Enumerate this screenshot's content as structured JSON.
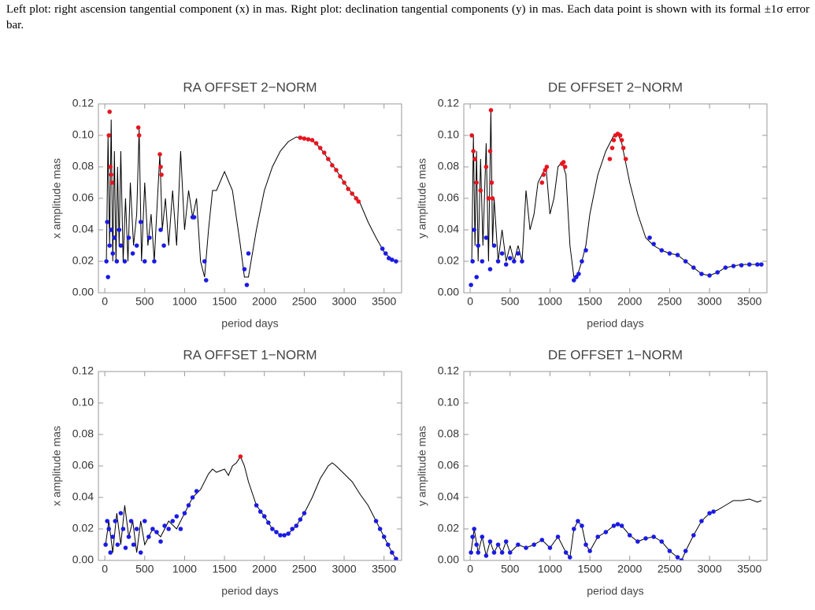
{
  "caption": "Left plot: right ascension tangential component (x) in mas. Right plot: declination tangential components (y) in mas. Each data point is shown with its formal ±1σ error bar.",
  "chart_data": [
    {
      "type": "line",
      "title": "RA OFFSET 2−NORM",
      "x_label": "period days",
      "y_label": "x amplitude mas",
      "xlim": [
        -80,
        3720
      ],
      "ylim": [
        0,
        0.12
      ],
      "xticks": [
        0,
        500,
        1000,
        1500,
        2000,
        2500,
        3000,
        3500
      ],
      "yticks": [
        {
          "value": 0,
          "label": "0.00"
        },
        0.02,
        0.04,
        0.06,
        0.08,
        {
          "value": 0.1,
          "label": "0.10"
        },
        0.12
      ],
      "series": [
        {
          "mode": "line",
          "color": "#000000",
          "x": [
            20,
            40,
            60,
            80,
            100,
            120,
            140,
            160,
            180,
            200,
            230,
            260,
            290,
            320,
            360,
            400,
            430,
            460,
            500,
            540,
            580,
            620,
            660,
            690,
            720,
            760,
            800,
            850,
            900,
            950,
            1000,
            1050,
            1100,
            1150,
            1200,
            1250,
            1300,
            1350,
            1400,
            1500,
            1600,
            1700,
            1750,
            1800,
            1850,
            1900,
            2000,
            2100,
            2200,
            2300,
            2400,
            2500,
            2600,
            2700,
            2800,
            2900,
            3000,
            3100,
            3200,
            3300,
            3400,
            3500,
            3600,
            3650
          ],
          "values": [
            0.02,
            0.1,
            0.03,
            0.11,
            0.02,
            0.09,
            0.02,
            0.08,
            0.03,
            0.09,
            0.02,
            0.06,
            0.02,
            0.07,
            0.03,
            0.05,
            0.104,
            0.02,
            0.07,
            0.03,
            0.05,
            0.02,
            0.06,
            0.088,
            0.04,
            0.06,
            0.03,
            0.065,
            0.03,
            0.09,
            0.04,
            0.065,
            0.048,
            0.06,
            0.02,
            0.01,
            0.04,
            0.065,
            0.065,
            0.077,
            0.065,
            0.03,
            0.01,
            0.01,
            0.025,
            0.04,
            0.065,
            0.08,
            0.09,
            0.096,
            0.099,
            0.098,
            0.097,
            0.092,
            0.085,
            0.078,
            0.07,
            0.063,
            0.057,
            0.045,
            0.035,
            0.026,
            0.021,
            0.02
          ]
        },
        {
          "mode": "points",
          "color": "#e8141e",
          "x": [
            50,
            60,
            70,
            80,
            90,
            420,
            430,
            690,
            700,
            710,
            2450,
            2500,
            2550,
            2600,
            2650,
            2700,
            2750,
            2800,
            2850,
            2900,
            2950,
            3000,
            3050,
            3100,
            3150,
            3180
          ],
          "values": [
            0.1,
            0.115,
            0.08,
            0.075,
            0.07,
            0.105,
            0.1,
            0.088,
            0.08,
            0.075,
            0.0985,
            0.098,
            0.0975,
            0.097,
            0.095,
            0.092,
            0.089,
            0.085,
            0.081,
            0.078,
            0.074,
            0.07,
            0.066,
            0.063,
            0.06,
            0.058
          ]
        },
        {
          "mode": "points",
          "color": "#1a1ae6",
          "x": [
            20,
            30,
            40,
            60,
            80,
            100,
            120,
            150,
            180,
            200,
            250,
            300,
            350,
            400,
            450,
            500,
            560,
            620,
            700,
            740,
            1100,
            1120,
            1250,
            1270,
            1750,
            1780,
            1800,
            3480,
            3520,
            3560,
            3600,
            3650
          ],
          "values": [
            0.02,
            0.045,
            0.01,
            0.03,
            0.04,
            0.025,
            0.035,
            0.02,
            0.04,
            0.03,
            0.02,
            0.035,
            0.025,
            0.03,
            0.045,
            0.02,
            0.035,
            0.02,
            0.04,
            0.03,
            0.048,
            0.048,
            0.02,
            0.008,
            0.015,
            0.005,
            0.025,
            0.028,
            0.025,
            0.022,
            0.021,
            0.02
          ]
        }
      ]
    },
    {
      "type": "line",
      "title": "DE OFFSET 2−NORM",
      "x_label": "period days",
      "y_label": "y amplitude mas",
      "xlim": [
        -80,
        3720
      ],
      "ylim": [
        0,
        0.12
      ],
      "xticks": [
        0,
        500,
        1000,
        1500,
        2000,
        2500,
        3000,
        3500
      ],
      "yticks": [
        {
          "value": 0,
          "label": "0.00"
        },
        0.02,
        0.04,
        0.06,
        0.08,
        {
          "value": 0.1,
          "label": "0.10"
        },
        0.12
      ],
      "series": [
        {
          "mode": "line",
          "color": "#000000",
          "x": [
            20,
            40,
            60,
            80,
            100,
            130,
            160,
            200,
            230,
            260,
            280,
            300,
            350,
            400,
            450,
            500,
            550,
            600,
            650,
            700,
            750,
            800,
            850,
            900,
            950,
            1000,
            1050,
            1100,
            1150,
            1200,
            1250,
            1300,
            1350,
            1400,
            1450,
            1500,
            1600,
            1700,
            1800,
            1850,
            1900,
            2000,
            2100,
            2200,
            2300,
            2400,
            2500,
            2600,
            2700,
            2800,
            2900,
            3000,
            3100,
            3200,
            3300,
            3400,
            3500,
            3600,
            3650
          ],
          "values": [
            0.02,
            0.1,
            0.03,
            0.09,
            0.02,
            0.085,
            0.03,
            0.095,
            0.02,
            0.116,
            0.03,
            0.06,
            0.02,
            0.04,
            0.02,
            0.03,
            0.02,
            0.03,
            0.02,
            0.065,
            0.04,
            0.05,
            0.07,
            0.075,
            0.08,
            0.05,
            0.06,
            0.08,
            0.083,
            0.075,
            0.03,
            0.01,
            0.012,
            0.02,
            0.03,
            0.05,
            0.075,
            0.09,
            0.1,
            0.101,
            0.095,
            0.07,
            0.05,
            0.035,
            0.03,
            0.027,
            0.025,
            0.024,
            0.02,
            0.016,
            0.012,
            0.011,
            0.013,
            0.016,
            0.017,
            0.018,
            0.018,
            0.018,
            0.018
          ]
        },
        {
          "mode": "points",
          "color": "#e8141e",
          "x": [
            20,
            40,
            60,
            80,
            130,
            200,
            230,
            250,
            260,
            270,
            280,
            900,
            920,
            940,
            960,
            1150,
            1170,
            1190,
            1750,
            1780,
            1800,
            1820,
            1850,
            1880,
            1900,
            1920,
            1950
          ],
          "values": [
            0.1,
            0.09,
            0.085,
            0.07,
            0.065,
            0.08,
            0.06,
            0.09,
            0.116,
            0.07,
            0.06,
            0.07,
            0.075,
            0.078,
            0.08,
            0.082,
            0.083,
            0.08,
            0.085,
            0.092,
            0.097,
            0.1,
            0.101,
            0.1,
            0.097,
            0.092,
            0.085
          ]
        },
        {
          "mode": "points",
          "color": "#1a1ae6",
          "x": [
            10,
            30,
            50,
            80,
            100,
            150,
            200,
            250,
            300,
            350,
            400,
            450,
            500,
            550,
            600,
            650,
            1300,
            1330,
            1360,
            1400,
            1450,
            2250,
            2300,
            2400,
            2500,
            2600,
            2700,
            2800,
            2900,
            3000,
            3100,
            3200,
            3300,
            3400,
            3500,
            3600,
            3650
          ],
          "values": [
            0.005,
            0.02,
            0.04,
            0.01,
            0.03,
            0.02,
            0.035,
            0.015,
            0.03,
            0.02,
            0.025,
            0.018,
            0.022,
            0.02,
            0.025,
            0.02,
            0.008,
            0.01,
            0.012,
            0.02,
            0.027,
            0.035,
            0.031,
            0.027,
            0.025,
            0.024,
            0.02,
            0.016,
            0.012,
            0.011,
            0.013,
            0.016,
            0.017,
            0.0175,
            0.018,
            0.018,
            0.018
          ]
        }
      ]
    },
    {
      "type": "line",
      "title": "RA OFFSET 1−NORM",
      "x_label": "period days",
      "y_label": "x amplitude mas",
      "xlim": [
        -80,
        3720
      ],
      "ylim": [
        0,
        0.12
      ],
      "xticks": [
        0,
        500,
        1000,
        1500,
        2000,
        2500,
        3000,
        3500
      ],
      "yticks": [
        {
          "value": 0,
          "label": "0.00"
        },
        0.02,
        0.04,
        0.06,
        0.08,
        {
          "value": 0.1,
          "label": "0.10"
        },
        0.12
      ],
      "series": [
        {
          "mode": "line",
          "color": "#000000",
          "x": [
            10,
            50,
            100,
            150,
            200,
            250,
            300,
            350,
            400,
            450,
            500,
            600,
            700,
            800,
            900,
            1000,
            1100,
            1200,
            1300,
            1350,
            1400,
            1500,
            1550,
            1600,
            1650,
            1700,
            1750,
            1800,
            1900,
            2000,
            2100,
            2200,
            2300,
            2400,
            2500,
            2600,
            2700,
            2800,
            2850,
            2900,
            3000,
            3100,
            3200,
            3300,
            3400,
            3500,
            3600,
            3650
          ],
          "values": [
            0.01,
            0.025,
            0.005,
            0.03,
            0.01,
            0.035,
            0.015,
            0.025,
            0.005,
            0.025,
            0.01,
            0.02,
            0.015,
            0.025,
            0.02,
            0.03,
            0.04,
            0.045,
            0.055,
            0.058,
            0.056,
            0.058,
            0.054,
            0.06,
            0.062,
            0.066,
            0.06,
            0.05,
            0.035,
            0.028,
            0.02,
            0.016,
            0.017,
            0.022,
            0.03,
            0.04,
            0.052,
            0.06,
            0.062,
            0.06,
            0.055,
            0.05,
            0.042,
            0.035,
            0.025,
            0.015,
            0.005,
            0.001
          ]
        },
        {
          "mode": "points",
          "color": "#e8141e",
          "x": [
            1700
          ],
          "values": [
            0.066
          ]
        },
        {
          "mode": "points",
          "color": "#1a1ae6",
          "x": [
            10,
            30,
            50,
            70,
            100,
            130,
            160,
            200,
            230,
            260,
            300,
            330,
            360,
            400,
            450,
            500,
            550,
            600,
            650,
            700,
            750,
            800,
            850,
            900,
            950,
            1000,
            1050,
            1100,
            1150,
            1900,
            1950,
            2000,
            2050,
            2100,
            2150,
            2200,
            2250,
            2300,
            2350,
            2400,
            2450,
            2500,
            3400,
            3450,
            3500,
            3550,
            3600,
            3650
          ],
          "values": [
            0.01,
            0.025,
            0.02,
            0.005,
            0.015,
            0.025,
            0.01,
            0.03,
            0.02,
            0.008,
            0.015,
            0.025,
            0.01,
            0.02,
            0.005,
            0.025,
            0.015,
            0.02,
            0.018,
            0.012,
            0.022,
            0.02,
            0.025,
            0.028,
            0.02,
            0.03,
            0.035,
            0.04,
            0.044,
            0.035,
            0.031,
            0.028,
            0.024,
            0.02,
            0.018,
            0.016,
            0.016,
            0.017,
            0.02,
            0.022,
            0.026,
            0.03,
            0.025,
            0.02,
            0.015,
            0.01,
            0.005,
            0.001
          ]
        }
      ]
    },
    {
      "type": "line",
      "title": "DE OFFSET 1−NORM",
      "x_label": "period days",
      "y_label": "y amplitude mas",
      "xlim": [
        -80,
        3720
      ],
      "ylim": [
        0,
        0.12
      ],
      "xticks": [
        0,
        500,
        1000,
        1500,
        2000,
        2500,
        3000,
        3500
      ],
      "yticks": [
        {
          "value": 0,
          "label": "0.00"
        },
        0.02,
        0.04,
        0.06,
        0.08,
        {
          "value": 0.1,
          "label": "0.10"
        },
        0.12
      ],
      "series": [
        {
          "mode": "line",
          "color": "#000000",
          "x": [
            10,
            50,
            100,
            150,
            200,
            250,
            300,
            350,
            400,
            450,
            500,
            600,
            700,
            800,
            900,
            1000,
            1100,
            1200,
            1250,
            1300,
            1350,
            1400,
            1450,
            1500,
            1600,
            1700,
            1800,
            1850,
            1900,
            2000,
            2100,
            2200,
            2300,
            2400,
            2500,
            2600,
            2650,
            2700,
            2800,
            2900,
            3000,
            3100,
            3200,
            3300,
            3400,
            3500,
            3600,
            3650
          ],
          "values": [
            0.005,
            0.02,
            0.005,
            0.015,
            0.003,
            0.012,
            0.005,
            0.01,
            0.005,
            0.012,
            0.005,
            0.01,
            0.008,
            0.01,
            0.013,
            0.008,
            0.015,
            0.005,
            0.002,
            0.02,
            0.025,
            0.022,
            0.01,
            0.006,
            0.015,
            0.018,
            0.022,
            0.023,
            0.022,
            0.016,
            0.012,
            0.014,
            0.015,
            0.012,
            0.006,
            0.002,
            0,
            0.006,
            0.016,
            0.025,
            0.03,
            0.032,
            0.035,
            0.038,
            0.038,
            0.039,
            0.037,
            0.038
          ]
        },
        {
          "mode": "points",
          "color": "#1a1ae6",
          "x": [
            10,
            30,
            50,
            80,
            100,
            150,
            200,
            250,
            300,
            350,
            400,
            450,
            500,
            600,
            700,
            800,
            900,
            1000,
            1100,
            1200,
            1250,
            1300,
            1350,
            1400,
            1450,
            1500,
            1600,
            1700,
            1800,
            1850,
            1900,
            2000,
            2100,
            2200,
            2300,
            2400,
            2500,
            2600,
            2650,
            2700,
            2800,
            2900,
            3000,
            3050
          ],
          "values": [
            0.005,
            0.015,
            0.02,
            0.01,
            0.005,
            0.015,
            0.003,
            0.012,
            0.005,
            0.01,
            0.005,
            0.012,
            0.005,
            0.01,
            0.008,
            0.01,
            0.013,
            0.008,
            0.015,
            0.005,
            0.002,
            0.02,
            0.025,
            0.022,
            0.01,
            0.006,
            0.015,
            0.018,
            0.022,
            0.023,
            0.022,
            0.016,
            0.012,
            0.014,
            0.015,
            0.012,
            0.006,
            0.002,
            0,
            0.006,
            0.016,
            0.025,
            0.03,
            0.031
          ]
        }
      ]
    }
  ]
}
